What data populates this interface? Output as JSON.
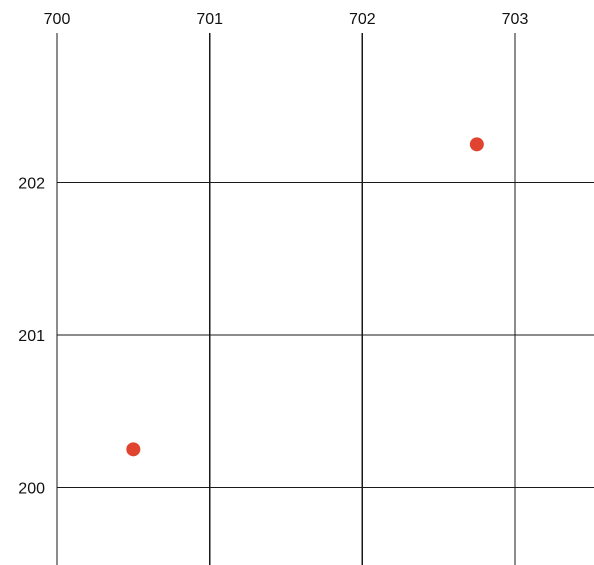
{
  "chart_data": {
    "type": "scatter",
    "title": "",
    "xlabel": "",
    "ylabel": "",
    "x_ticks": [
      700,
      701,
      702,
      703
    ],
    "y_ticks": [
      202,
      201,
      200
    ],
    "xlim": [
      700,
      703.5
    ],
    "ylim": [
      199.55,
      202.98
    ],
    "grid": true,
    "x_axis_position": "top",
    "y_axis_position": "left",
    "marker_color": "#e0432f",
    "grid_color": "#1a1a1a",
    "points": [
      {
        "x": 700.5,
        "y": 200.25
      },
      {
        "x": 702.75,
        "y": 202.25
      }
    ]
  }
}
